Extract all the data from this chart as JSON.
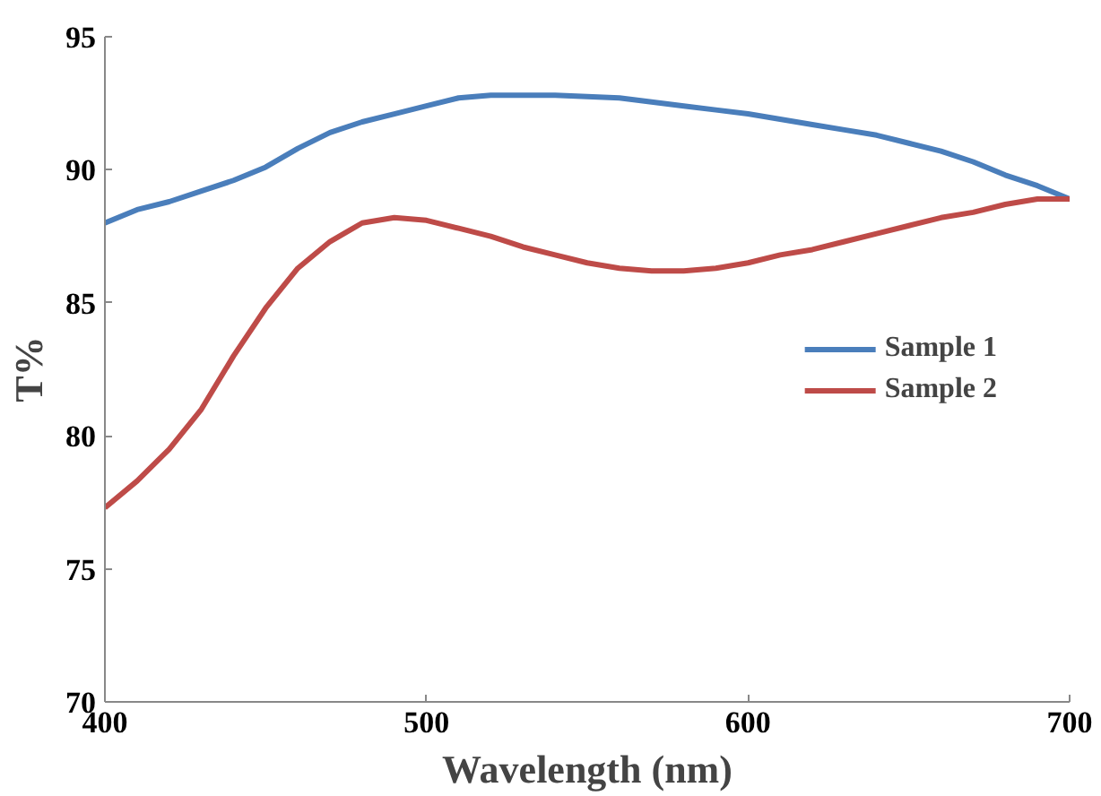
{
  "chart_data": {
    "type": "line",
    "xlabel": "Wavelength (nm)",
    "ylabel": "T%",
    "xlim": [
      400,
      700
    ],
    "ylim": [
      70,
      95
    ],
    "xticks": [
      400,
      500,
      600,
      700
    ],
    "yticks": [
      70,
      75,
      80,
      85,
      90,
      95
    ],
    "grid": false,
    "legend": "right",
    "marker": "none",
    "line_style": "solid",
    "series": [
      {
        "name": "Sample 1",
        "color": "#4a7ebb",
        "x": [
          400,
          410,
          420,
          430,
          440,
          450,
          460,
          470,
          480,
          490,
          500,
          510,
          520,
          530,
          540,
          550,
          560,
          570,
          580,
          590,
          600,
          610,
          620,
          630,
          640,
          650,
          660,
          670,
          680,
          690,
          700
        ],
        "values": [
          88.0,
          88.5,
          88.8,
          89.2,
          89.6,
          90.1,
          90.8,
          91.4,
          91.8,
          92.1,
          92.4,
          92.7,
          92.8,
          92.8,
          92.8,
          92.75,
          92.7,
          92.55,
          92.4,
          92.25,
          92.1,
          91.9,
          91.7,
          91.5,
          91.3,
          91.0,
          90.7,
          90.3,
          89.8,
          89.4,
          88.9
        ]
      },
      {
        "name": "Sample 2",
        "color": "#be4b48",
        "x": [
          400,
          410,
          420,
          430,
          440,
          450,
          460,
          470,
          480,
          490,
          500,
          510,
          520,
          530,
          540,
          550,
          560,
          570,
          580,
          590,
          600,
          610,
          620,
          630,
          640,
          650,
          660,
          670,
          680,
          690,
          700
        ],
        "values": [
          77.3,
          78.3,
          79.5,
          81.0,
          83.0,
          84.8,
          86.3,
          87.3,
          88.0,
          88.2,
          88.1,
          87.8,
          87.5,
          87.1,
          86.8,
          86.5,
          86.3,
          86.2,
          86.2,
          86.3,
          86.5,
          86.8,
          87.0,
          87.3,
          87.6,
          87.9,
          88.2,
          88.4,
          88.7,
          88.9,
          88.9
        ]
      }
    ]
  }
}
